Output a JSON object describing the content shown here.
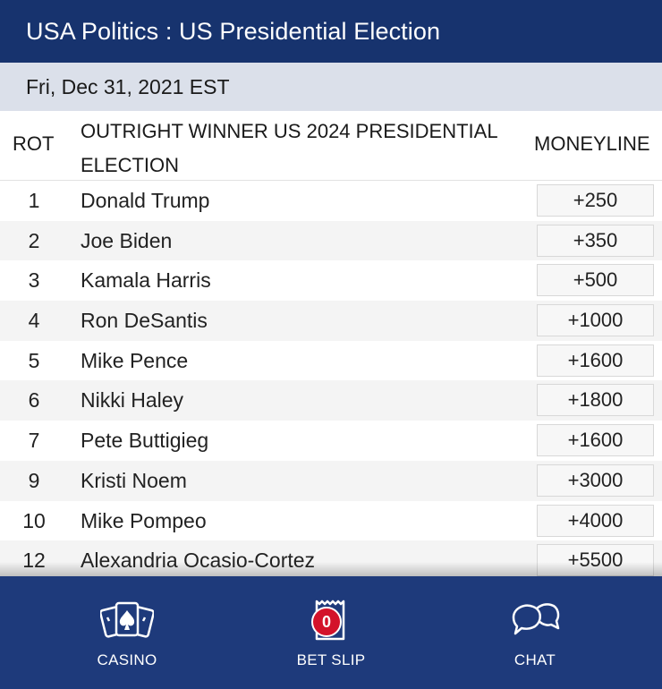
{
  "header": {
    "title": "USA Politics : US Presidential Election"
  },
  "date_bar": {
    "date": "Fri, Dec 31, 2021 EST"
  },
  "table": {
    "columns": {
      "rot": "ROT",
      "event": "OUTRIGHT WINNER US 2024 PRESIDENTIAL ELECTION",
      "moneyline": "MONEYLINE"
    },
    "rows": [
      {
        "rot": "1",
        "name": "Donald Trump",
        "odds": "+250"
      },
      {
        "rot": "2",
        "name": "Joe Biden",
        "odds": "+350"
      },
      {
        "rot": "3",
        "name": "Kamala Harris",
        "odds": "+500"
      },
      {
        "rot": "4",
        "name": "Ron DeSantis",
        "odds": "+1000"
      },
      {
        "rot": "5",
        "name": "Mike Pence",
        "odds": "+1600"
      },
      {
        "rot": "6",
        "name": "Nikki Haley",
        "odds": "+1800"
      },
      {
        "rot": "7",
        "name": "Pete Buttigieg",
        "odds": "+1600"
      },
      {
        "rot": "9",
        "name": "Kristi Noem",
        "odds": "+3000"
      },
      {
        "rot": "10",
        "name": "Mike Pompeo",
        "odds": "+4000"
      },
      {
        "rot": "12",
        "name": "Alexandria Ocasio-Cortez",
        "odds": "+5500"
      }
    ]
  },
  "footer": {
    "casino": {
      "label": "CASINO",
      "icon": "playing-cards-icon"
    },
    "bet_slip": {
      "label": "BET SLIP",
      "icon": "receipt-icon",
      "count": "0"
    },
    "chat": {
      "label": "CHAT",
      "icon": "chat-bubbles-icon"
    }
  },
  "colors": {
    "header": "#17336e",
    "date_bar": "#dbe0ea",
    "footer": "#1e3a7b",
    "badge": "#d3122a"
  }
}
